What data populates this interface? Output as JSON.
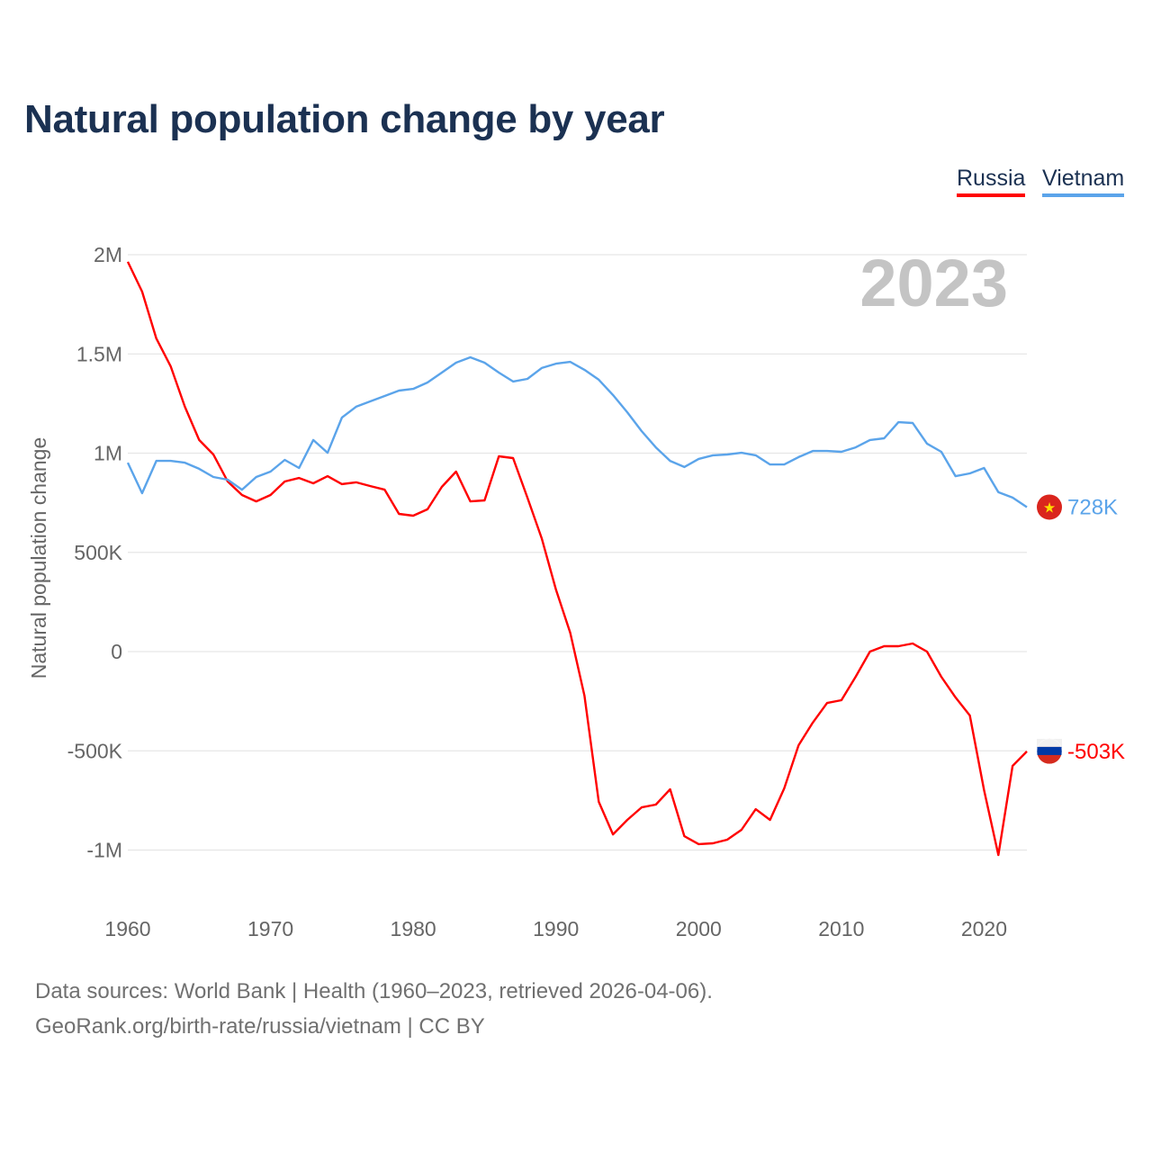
{
  "title": "Natural population change by year",
  "legend": [
    {
      "name": "Russia",
      "color": "#ff0000"
    },
    {
      "name": "Vietnam",
      "color": "#5ba4ea"
    }
  ],
  "footer": {
    "line1": "Data sources: World Bank | Health (1960–2023, retrieved 2026-04-06).",
    "line2": "GeoRank.org/birth-rate/russia/vietnam | CC BY"
  },
  "chart_data": {
    "type": "line",
    "title": "Natural population change by year",
    "ylabel": "Natural population change",
    "xlabel": "",
    "year_watermark": "2023",
    "ylim": [
      -1000000,
      2000000
    ],
    "xlim": [
      1960,
      2023
    ],
    "y_ticks": [
      {
        "v": 2000000,
        "label": "2M"
      },
      {
        "v": 1500000,
        "label": "1.5M"
      },
      {
        "v": 1000000,
        "label": "1M"
      },
      {
        "v": 500000,
        "label": "500K"
      },
      {
        "v": 0,
        "label": "0"
      },
      {
        "v": -500000,
        "label": "-500K"
      },
      {
        "v": -1000000,
        "label": "-1M"
      }
    ],
    "x_ticks": [
      {
        "v": 1960,
        "label": "1960"
      },
      {
        "v": 1970,
        "label": "1970"
      },
      {
        "v": 1980,
        "label": "1980"
      },
      {
        "v": 1990,
        "label": "1990"
      },
      {
        "v": 2000,
        "label": "2000"
      },
      {
        "v": 2010,
        "label": "2010"
      },
      {
        "v": 2020,
        "label": "2020"
      }
    ],
    "grid": true,
    "legend_position": "top-right",
    "x_start": 1960,
    "series": [
      {
        "name": "Russia",
        "color": "#ff0000",
        "end_label": "-503K",
        "flag": "russia-flag",
        "values": [
          1964000,
          1814000,
          1578000,
          1438000,
          1234000,
          1066000,
          993000,
          857000,
          789000,
          757000,
          789000,
          857000,
          875000,
          848000,
          884000,
          844000,
          853000,
          834000,
          816000,
          694000,
          685000,
          717000,
          830000,
          907000,
          757000,
          762000,
          984000,
          975000,
          776000,
          571000,
          313000,
          95000,
          -222000,
          -757000,
          -921000,
          -848000,
          -785000,
          -771000,
          -694000,
          -930000,
          -970000,
          -966000,
          -948000,
          -898000,
          -794000,
          -848000,
          -689000,
          -472000,
          -358000,
          -259000,
          -245000,
          -127000,
          0,
          27000,
          27000,
          41000,
          0,
          -127000,
          -231000,
          -322000,
          -698000,
          -1025000,
          -576000,
          -503000
        ]
      },
      {
        "name": "Vietnam",
        "color": "#5ba4ea",
        "end_label": "728K",
        "flag": "vietnam-flag",
        "values": [
          952000,
          798000,
          961000,
          961000,
          952000,
          921000,
          880000,
          866000,
          816000,
          880000,
          907000,
          966000,
          925000,
          1066000,
          1002000,
          1179000,
          1234000,
          1261000,
          1288000,
          1315000,
          1324000,
          1356000,
          1406000,
          1456000,
          1483000,
          1456000,
          1406000,
          1361000,
          1374000,
          1429000,
          1451000,
          1460000,
          1420000,
          1370000,
          1293000,
          1206000,
          1111000,
          1029000,
          961000,
          930000,
          971000,
          989000,
          993000,
          1002000,
          989000,
          943000,
          943000,
          980000,
          1011000,
          1011000,
          1007000,
          1029000,
          1066000,
          1075000,
          1156000,
          1152000,
          1048000,
          1007000,
          884000,
          898000,
          925000,
          803000,
          776000,
          728000
        ]
      }
    ]
  }
}
